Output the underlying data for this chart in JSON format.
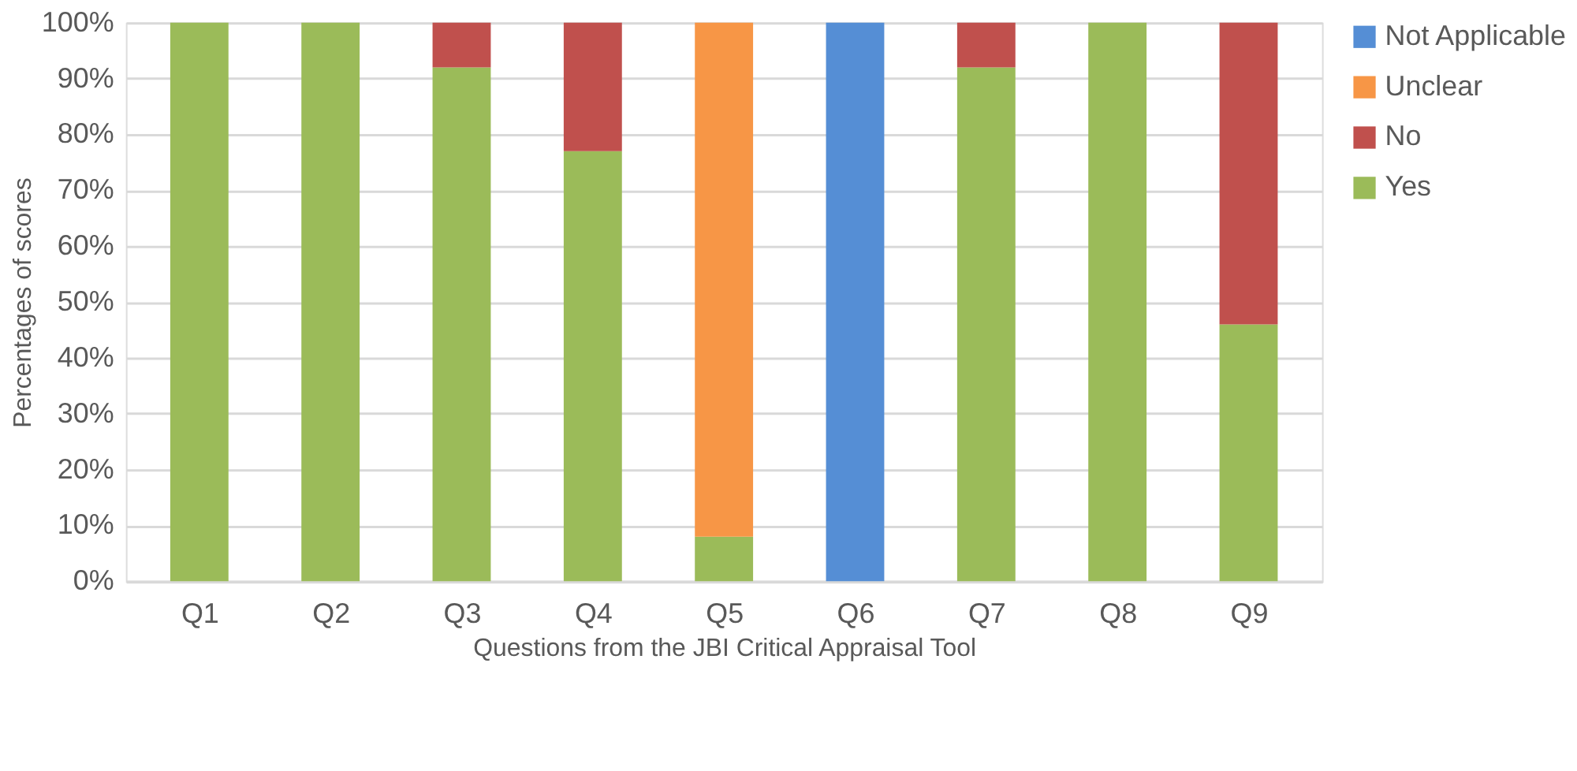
{
  "chart_data": {
    "type": "bar",
    "stacked": true,
    "xlabel": "Questions from the JBI Critical Appraisal Tool",
    "ylabel": "Percentages of scores",
    "categories": [
      "Q1",
      "Q2",
      "Q3",
      "Q4",
      "Q5",
      "Q6",
      "Q7",
      "Q8",
      "Q9"
    ],
    "series": [
      {
        "name": "Yes",
        "color": "#9bbb59",
        "values": [
          100,
          100,
          92,
          77,
          8,
          null,
          92,
          100,
          46
        ]
      },
      {
        "name": "No",
        "color": "#c0504d",
        "values": [
          null,
          null,
          8,
          23,
          null,
          null,
          8,
          null,
          54
        ]
      },
      {
        "name": "Unclear",
        "color": "#f79646",
        "values": [
          null,
          null,
          null,
          null,
          92,
          null,
          null,
          null,
          null
        ]
      },
      {
        "name": "Not Applicable",
        "color": "#558ed5",
        "values": [
          null,
          null,
          null,
          null,
          null,
          100,
          null,
          null,
          null
        ]
      }
    ],
    "ylim": [
      0,
      100
    ],
    "yticks": [
      {
        "value": 0,
        "label": "0%"
      },
      {
        "value": 10,
        "label": "10%"
      },
      {
        "value": 20,
        "label": "20%"
      },
      {
        "value": 30,
        "label": "30%"
      },
      {
        "value": 40,
        "label": "40%"
      },
      {
        "value": 50,
        "label": "50%"
      },
      {
        "value": 60,
        "label": "60%"
      },
      {
        "value": 70,
        "label": "70%"
      },
      {
        "value": 80,
        "label": "80%"
      },
      {
        "value": 90,
        "label": "90%"
      },
      {
        "value": 100,
        "label": "100%"
      }
    ],
    "grid": "y",
    "legend": "right"
  }
}
